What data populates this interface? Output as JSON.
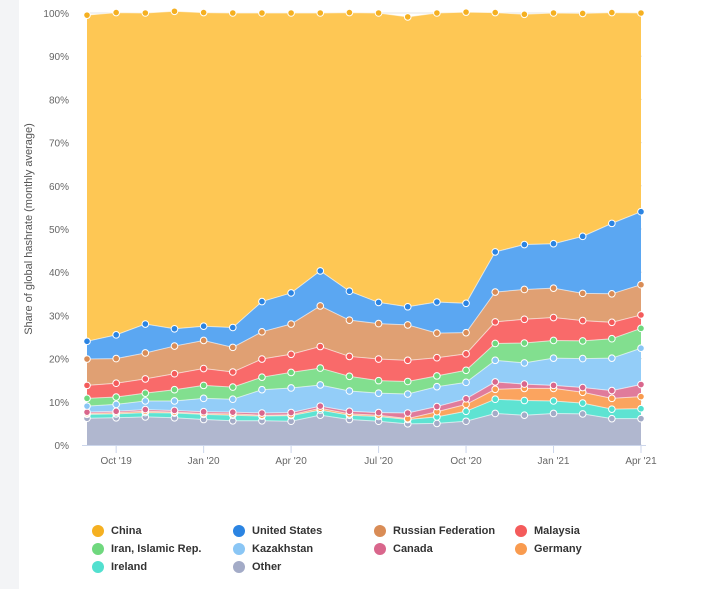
{
  "chart_data": {
    "type": "area",
    "stacking": "percent",
    "ylabel": "Share of global hashrate (monthly average)",
    "ylim": [
      0,
      100
    ],
    "yticks": [
      "0%",
      "10%",
      "20%",
      "30%",
      "40%",
      "50%",
      "60%",
      "70%",
      "80%",
      "90%",
      "100%"
    ],
    "x": [
      "Sep '19",
      "Oct '19",
      "Nov '19",
      "Dec '19",
      "Jan '20",
      "Feb '20",
      "Mar '20",
      "Apr '20",
      "May '20",
      "Jun '20",
      "Jul '20",
      "Aug '20",
      "Sep '20",
      "Oct '20",
      "Nov '20",
      "Dec '20",
      "Jan '21",
      "Feb '21",
      "Mar '21",
      "Apr '21"
    ],
    "xticks": [
      {
        "index": 1,
        "label": "Oct '19"
      },
      {
        "index": 4,
        "label": "Jan '20"
      },
      {
        "index": 7,
        "label": "Apr '20"
      },
      {
        "index": 10,
        "label": "Jul '20"
      },
      {
        "index": 13,
        "label": "Oct '20"
      },
      {
        "index": 16,
        "label": "Jan '21"
      },
      {
        "index": 19,
        "label": "Apr '21"
      }
    ],
    "series": [
      {
        "name": "Other",
        "color": "#b0b7cf",
        "values": [
          6.2,
          6.3,
          6.5,
          6.3,
          5.9,
          5.6,
          5.6,
          5.5,
          6.9,
          5.9,
          5.5,
          4.9,
          5.0,
          5.5,
          7.3,
          6.9,
          7.3,
          7.2,
          6.1,
          6.1
        ]
      },
      {
        "name": "Ireland",
        "color": "#5ee3d2",
        "values": [
          0.9,
          0.9,
          1.0,
          1.1,
          1.2,
          1.3,
          1.1,
          1.3,
          1.2,
          1.0,
          1.1,
          1.0,
          1.5,
          2.3,
          3.3,
          3.4,
          2.9,
          2.5,
          2.2,
          2.3
        ]
      },
      {
        "name": "Germany",
        "color": "#fba45f",
        "values": [
          0.2,
          0.3,
          0.3,
          0.2,
          0.2,
          0.3,
          0.2,
          0.2,
          0.4,
          0.3,
          0.3,
          0.2,
          1.2,
          1.6,
          2.3,
          2.8,
          2.9,
          2.5,
          2.5,
          2.8
        ]
      },
      {
        "name": "Canada",
        "color": "#e07b9b",
        "values": [
          0.3,
          0.3,
          0.4,
          0.4,
          0.4,
          0.4,
          0.5,
          0.5,
          0.5,
          0.6,
          0.6,
          1.3,
          1.2,
          1.3,
          1.7,
          1.0,
          0.7,
          1.1,
          1.8,
          2.8
        ]
      },
      {
        "name": "Kazakhstan",
        "color": "#93cdf8",
        "values": [
          1.4,
          1.6,
          2.0,
          2.2,
          3.1,
          3.0,
          5.4,
          5.7,
          4.9,
          4.7,
          4.5,
          4.4,
          4.6,
          3.8,
          5.0,
          4.9,
          6.3,
          6.7,
          7.5,
          8.4
        ]
      },
      {
        "name": "Iran, Islamic Rep.",
        "color": "#82df8f",
        "values": [
          1.8,
          1.7,
          1.8,
          2.6,
          3.0,
          2.8,
          2.9,
          3.6,
          3.9,
          3.4,
          2.9,
          2.9,
          2.5,
          2.8,
          3.9,
          4.6,
          4.1,
          4.1,
          4.5,
          4.6
        ]
      },
      {
        "name": "Malaysia",
        "color": "#f96a6a",
        "values": [
          3.0,
          3.2,
          3.3,
          3.7,
          3.9,
          3.5,
          4.2,
          4.2,
          5.0,
          4.6,
          5.0,
          4.9,
          4.2,
          3.8,
          5.0,
          5.5,
          5.3,
          4.7,
          3.8,
          3.1
        ]
      },
      {
        "name": "Russian Federation",
        "color": "#e0a073",
        "values": [
          6.1,
          5.7,
          6.0,
          6.4,
          6.5,
          5.7,
          6.3,
          7.0,
          9.4,
          8.4,
          8.2,
          8.2,
          5.7,
          4.9,
          6.9,
          6.9,
          6.8,
          6.3,
          6.6,
          7.0
        ]
      },
      {
        "name": "United States",
        "color": "#5ba7f2",
        "values": [
          4.1,
          5.5,
          6.7,
          4.0,
          3.3,
          4.6,
          7.0,
          7.2,
          8.1,
          6.7,
          4.9,
          4.2,
          7.2,
          6.8,
          9.3,
          10.4,
          10.3,
          13.2,
          16.3,
          16.9
        ]
      },
      {
        "name": "China",
        "color": "#fec754",
        "values": [
          75.5,
          74.6,
          72.0,
          73.5,
          72.6,
          72.8,
          66.8,
          64.8,
          59.7,
          64.5,
          67.0,
          67.1,
          66.9,
          67.4,
          55.4,
          53.3,
          53.4,
          51.6,
          48.8,
          46.0
        ]
      }
    ],
    "legend_position": "bottom"
  },
  "legend": [
    {
      "name": "China",
      "color": "#f5b021"
    },
    {
      "name": "United States",
      "color": "#2b84e2"
    },
    {
      "name": "Russian Federation",
      "color": "#d98c56"
    },
    {
      "name": "Malaysia",
      "color": "#f45b5b"
    },
    {
      "name": "Iran, Islamic Rep.",
      "color": "#6fd87e"
    },
    {
      "name": "Kazakhstan",
      "color": "#8ac6f5"
    },
    {
      "name": "Canada",
      "color": "#d9668c"
    },
    {
      "name": "Germany",
      "color": "#f99b4f"
    },
    {
      "name": "Ireland",
      "color": "#52e0cf"
    },
    {
      "name": "Other",
      "color": "#a3abc7"
    }
  ]
}
